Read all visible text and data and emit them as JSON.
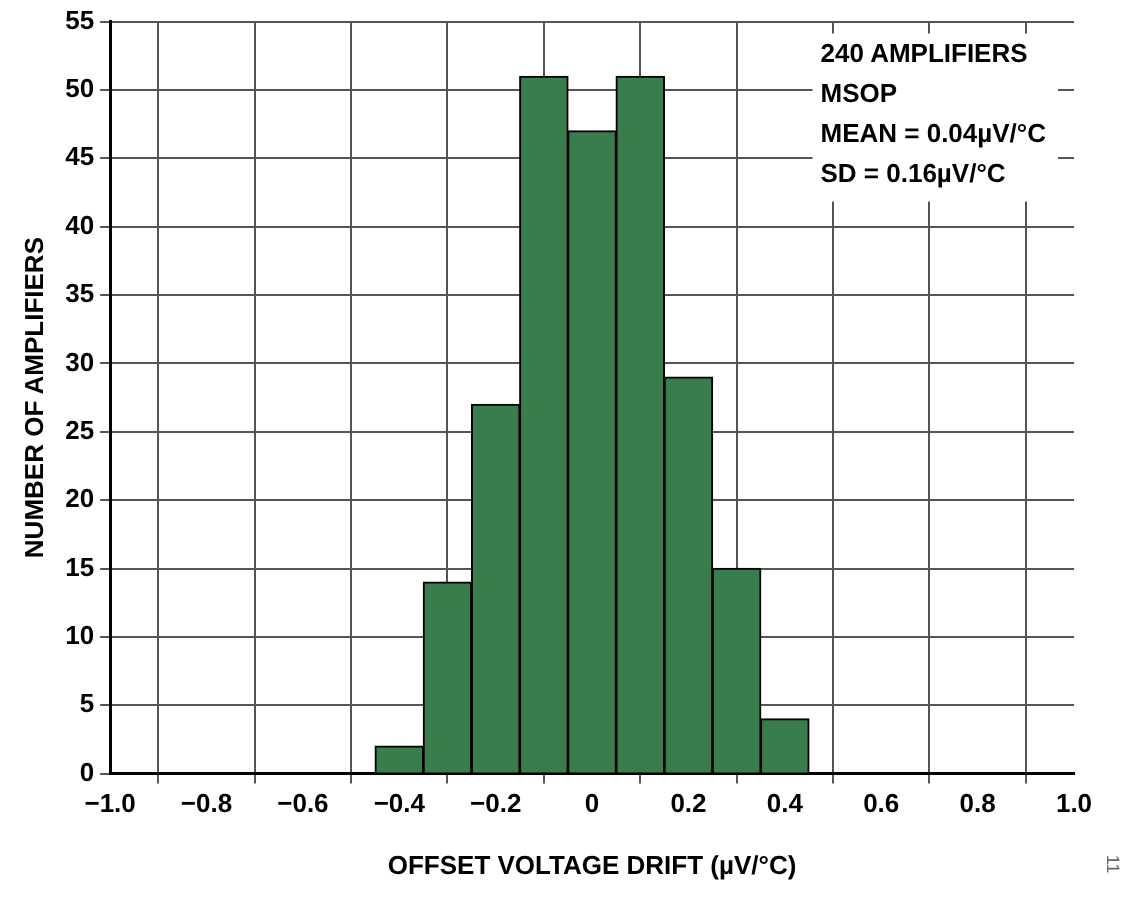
{
  "chart_data": {
    "type": "histogram",
    "xlabel": "OFFSET VOLTAGE DRIFT (µV/°C)",
    "ylabel": "NUMBER OF AMPLIFIERS",
    "bins": [
      -0.45,
      -0.35,
      -0.25,
      -0.15,
      -0.05,
      0.05,
      0.15,
      0.25,
      0.35,
      0.45
    ],
    "values": [
      2,
      14,
      27,
      51,
      47,
      51,
      29,
      15,
      4
    ],
    "color": "#3a7d4c",
    "xlim": [
      -1.0,
      1.0
    ],
    "xticks": [
      {
        "value": -1.0,
        "label": "−1.0"
      },
      {
        "value": -0.8,
        "label": "−0.8"
      },
      {
        "value": -0.6,
        "label": "−0.6"
      },
      {
        "value": -0.4,
        "label": "−0.4"
      },
      {
        "value": -0.2,
        "label": "−0.2"
      },
      0,
      {
        "value": 0.2,
        "label": "0.2"
      },
      {
        "value": 0.4,
        "label": "0.4"
      },
      {
        "value": 0.6,
        "label": "0.6"
      },
      {
        "value": 0.8,
        "label": "0.8"
      },
      {
        "value": 1.0,
        "label": "1.0"
      }
    ],
    "ylim": [
      0,
      55
    ],
    "yticks": [
      0,
      5,
      10,
      15,
      20,
      25,
      30,
      35,
      40,
      45,
      50,
      55
    ],
    "grid": true,
    "legend": false,
    "annotations": [
      "240 AMPLIFIERS",
      "MSOP",
      "MEAN = 0.04µV/°C",
      "SD = 0.16µV/°C",
      "11"
    ]
  }
}
